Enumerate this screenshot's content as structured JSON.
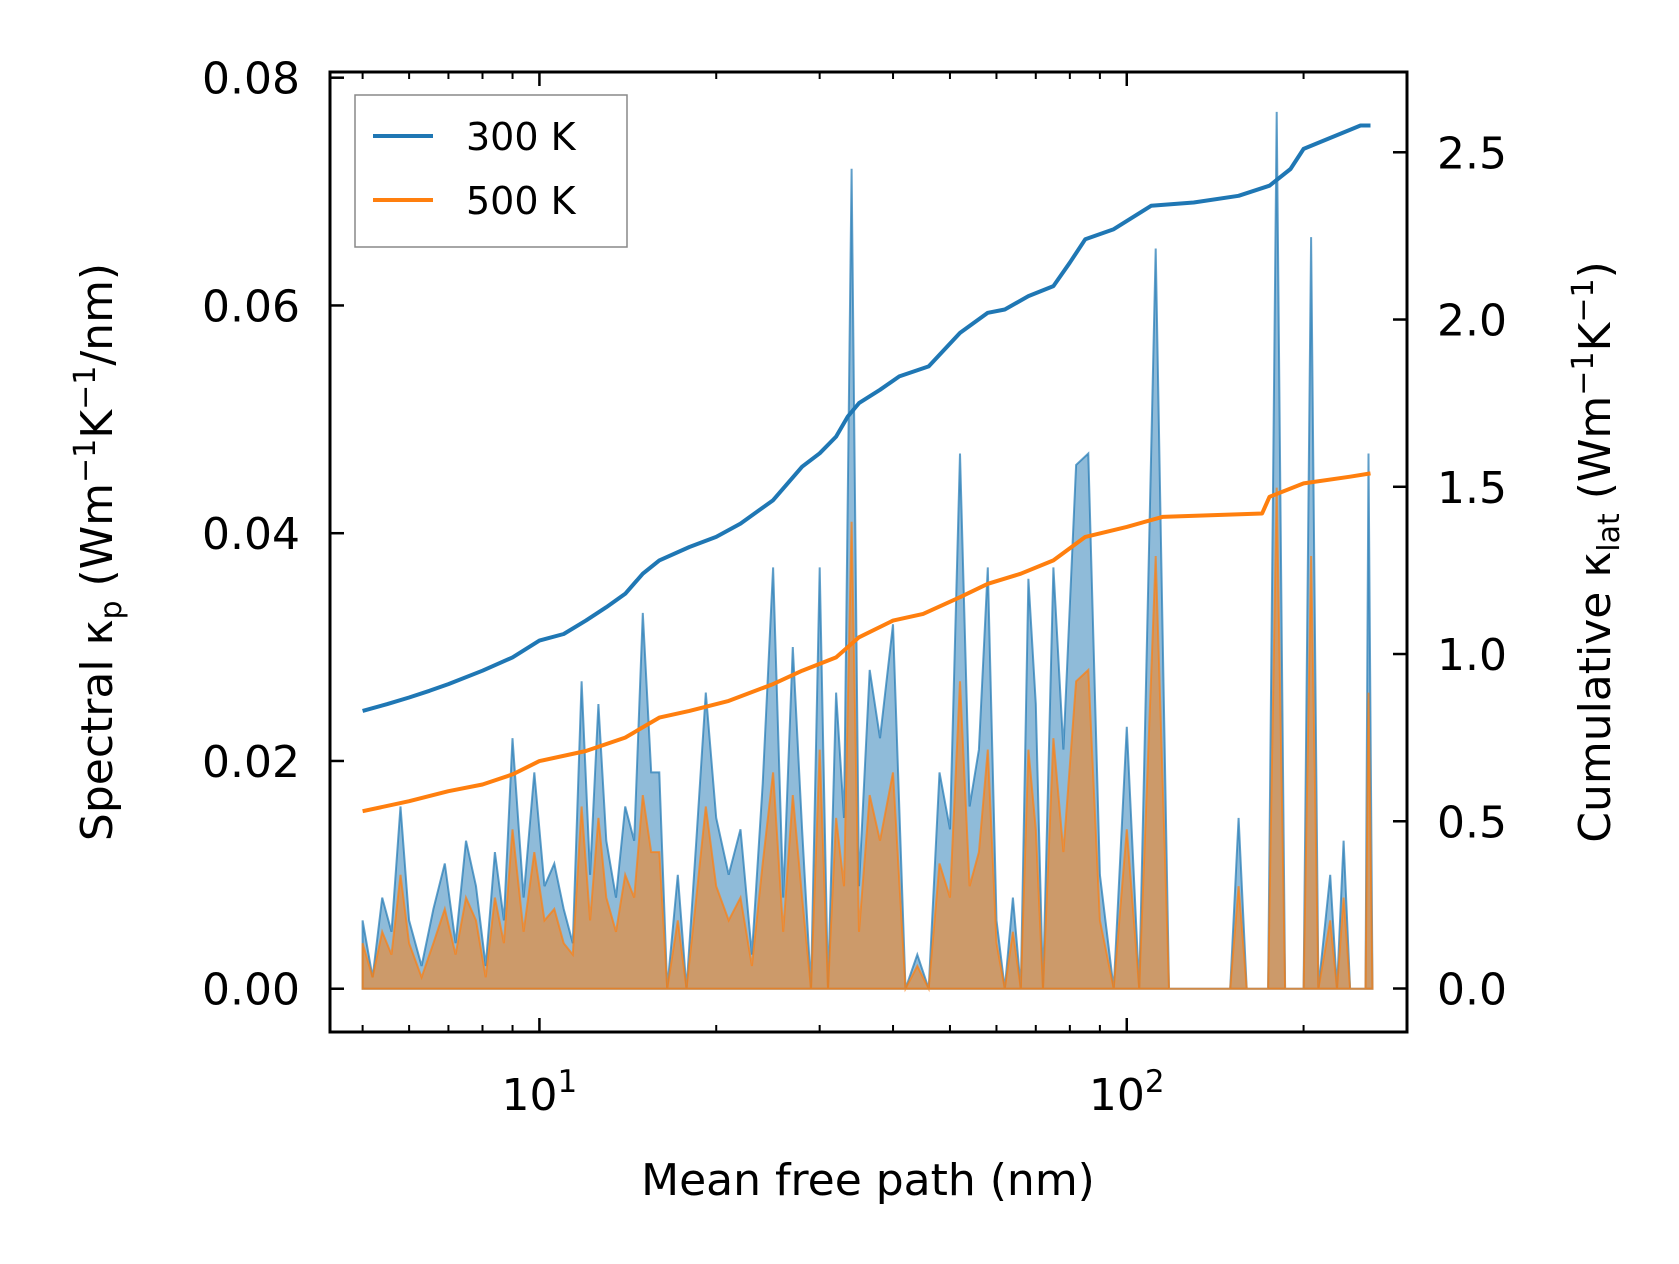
{
  "chart_data": {
    "type": "line",
    "title": "",
    "xlabel": "Mean free path (nm)",
    "x_scale": "log",
    "xlim": [
      4.4,
      300
    ],
    "xticks": [
      {
        "value": 10,
        "label": "10",
        "exp": "1"
      },
      {
        "value": 100,
        "label": "10",
        "exp": "2"
      }
    ],
    "ylabel_left": {
      "prefix": "Spectral κ",
      "sub": "p",
      "unit_open": " (Wm",
      "sup1": "−1",
      "unit_mid": "K",
      "sup2": "−1",
      "unit_close": "/nm)"
    },
    "ylim_left": [
      -0.0038,
      0.0805
    ],
    "yticks_left": [
      "0.00",
      "0.02",
      "0.04",
      "0.06",
      "0.08"
    ],
    "ylabel_right": {
      "prefix": "Cumulative κ",
      "sub": "lat",
      "unit_open": " (Wm",
      "sup1": "−1",
      "unit_mid": "K",
      "sup2": "−1",
      "unit_close": ")"
    },
    "ylim_right": [
      -0.13,
      2.74
    ],
    "yticks_right": [
      "0.0",
      "0.5",
      "1.0",
      "1.5",
      "2.0",
      "2.5"
    ],
    "legend": {
      "position": "top-left",
      "entries": [
        {
          "label": "300 K",
          "color": "#1f77b4"
        },
        {
          "label": "500 K",
          "color": "#ff7f0e"
        }
      ]
    },
    "cumulative_series": [
      {
        "name": "300 K",
        "color": "#1f77b4",
        "axis": "right",
        "points": [
          [
            5.0,
            0.83
          ],
          [
            5.5,
            0.85
          ],
          [
            6.0,
            0.87
          ],
          [
            6.5,
            0.89
          ],
          [
            7.0,
            0.91
          ],
          [
            8.0,
            0.95
          ],
          [
            9.0,
            0.99
          ],
          [
            10.0,
            1.04
          ],
          [
            11.0,
            1.06
          ],
          [
            12.0,
            1.1
          ],
          [
            13.0,
            1.14
          ],
          [
            14.0,
            1.18
          ],
          [
            15.0,
            1.24
          ],
          [
            16.0,
            1.28
          ],
          [
            18.0,
            1.32
          ],
          [
            20.0,
            1.35
          ],
          [
            22.0,
            1.39
          ],
          [
            25.0,
            1.46
          ],
          [
            28.0,
            1.56
          ],
          [
            30.0,
            1.6
          ],
          [
            32.0,
            1.65
          ],
          [
            33.5,
            1.71
          ],
          [
            35.0,
            1.75
          ],
          [
            38.0,
            1.79
          ],
          [
            41.0,
            1.83
          ],
          [
            46.0,
            1.86
          ],
          [
            52.0,
            1.96
          ],
          [
            58.0,
            2.02
          ],
          [
            62.0,
            2.03
          ],
          [
            68.0,
            2.07
          ],
          [
            75.0,
            2.1
          ],
          [
            80.0,
            2.17
          ],
          [
            85.0,
            2.24
          ],
          [
            95.0,
            2.27
          ],
          [
            110.0,
            2.34
          ],
          [
            130.0,
            2.35
          ],
          [
            155.0,
            2.37
          ],
          [
            175.0,
            2.4
          ],
          [
            190.0,
            2.45
          ],
          [
            200.0,
            2.51
          ],
          [
            220.0,
            2.54
          ],
          [
            250.0,
            2.58
          ],
          [
            260.0,
            2.58
          ]
        ]
      },
      {
        "name": "500 K",
        "color": "#ff7f0e",
        "axis": "right",
        "points": [
          [
            5.0,
            0.53
          ],
          [
            6.0,
            0.56
          ],
          [
            7.0,
            0.59
          ],
          [
            8.0,
            0.61
          ],
          [
            9.0,
            0.64
          ],
          [
            10.0,
            0.68
          ],
          [
            12.0,
            0.71
          ],
          [
            14.0,
            0.75
          ],
          [
            16.0,
            0.81
          ],
          [
            18.0,
            0.83
          ],
          [
            21.0,
            0.86
          ],
          [
            25.0,
            0.91
          ],
          [
            28.0,
            0.95
          ],
          [
            32.0,
            0.99
          ],
          [
            35.0,
            1.05
          ],
          [
            40.0,
            1.1
          ],
          [
            45.0,
            1.12
          ],
          [
            52.0,
            1.17
          ],
          [
            58.0,
            1.21
          ],
          [
            66.0,
            1.24
          ],
          [
            75.0,
            1.28
          ],
          [
            85.0,
            1.35
          ],
          [
            100.0,
            1.38
          ],
          [
            115.0,
            1.41
          ],
          [
            170.0,
            1.42
          ],
          [
            175.0,
            1.47
          ],
          [
            200.0,
            1.51
          ],
          [
            240.0,
            1.53
          ],
          [
            260.0,
            1.54
          ]
        ]
      }
    ],
    "spectral_series": [
      {
        "name": "300 K",
        "color": "#1f77b4",
        "axis": "left",
        "points": [
          [
            5.0,
            0.006
          ],
          [
            5.2,
            0.001
          ],
          [
            5.4,
            0.008
          ],
          [
            5.6,
            0.005
          ],
          [
            5.8,
            0.016
          ],
          [
            6.0,
            0.006
          ],
          [
            6.3,
            0.002
          ],
          [
            6.6,
            0.007
          ],
          [
            6.9,
            0.011
          ],
          [
            7.2,
            0.004
          ],
          [
            7.5,
            0.013
          ],
          [
            7.8,
            0.009
          ],
          [
            8.1,
            0.002
          ],
          [
            8.4,
            0.012
          ],
          [
            8.7,
            0.006
          ],
          [
            9.0,
            0.022
          ],
          [
            9.4,
            0.008
          ],
          [
            9.8,
            0.019
          ],
          [
            10.2,
            0.009
          ],
          [
            10.6,
            0.011
          ],
          [
            11.0,
            0.007
          ],
          [
            11.4,
            0.004
          ],
          [
            11.8,
            0.027
          ],
          [
            12.2,
            0.01
          ],
          [
            12.6,
            0.025
          ],
          [
            13.0,
            0.013
          ],
          [
            13.5,
            0.008
          ],
          [
            14.0,
            0.016
          ],
          [
            14.5,
            0.013
          ],
          [
            15.0,
            0.033
          ],
          [
            15.5,
            0.019
          ],
          [
            16.0,
            0.019
          ],
          [
            16.5,
            0.0
          ],
          [
            17.2,
            0.01
          ],
          [
            17.8,
            0.0
          ],
          [
            18.5,
            0.013
          ],
          [
            19.2,
            0.026
          ],
          [
            20.0,
            0.015
          ],
          [
            21.0,
            0.01
          ],
          [
            22.0,
            0.014
          ],
          [
            23.0,
            0.003
          ],
          [
            24.0,
            0.018
          ],
          [
            25.0,
            0.037
          ],
          [
            26.0,
            0.008
          ],
          [
            27.0,
            0.03
          ],
          [
            28.0,
            0.014
          ],
          [
            29.0,
            0.0
          ],
          [
            30.0,
            0.037
          ],
          [
            31.0,
            0.0
          ],
          [
            32.0,
            0.026
          ],
          [
            33.0,
            0.015
          ],
          [
            34.0,
            0.072
          ],
          [
            35.0,
            0.009
          ],
          [
            36.5,
            0.028
          ],
          [
            38.0,
            0.022
          ],
          [
            40.0,
            0.032
          ],
          [
            42.0,
            0.0
          ],
          [
            44.0,
            0.003
          ],
          [
            46.0,
            0.0
          ],
          [
            48.0,
            0.019
          ],
          [
            50.0,
            0.014
          ],
          [
            52.0,
            0.047
          ],
          [
            54.0,
            0.016
          ],
          [
            56.0,
            0.021
          ],
          [
            58.0,
            0.037
          ],
          [
            60.0,
            0.006
          ],
          [
            62.0,
            0.0
          ],
          [
            64.0,
            0.008
          ],
          [
            66.0,
            0.0
          ],
          [
            68.0,
            0.036
          ],
          [
            70.0,
            0.025
          ],
          [
            72.0,
            0.0
          ],
          [
            75.0,
            0.037
          ],
          [
            78.0,
            0.021
          ],
          [
            82.0,
            0.046
          ],
          [
            86.0,
            0.047
          ],
          [
            90.0,
            0.01
          ],
          [
            95.0,
            0.0
          ],
          [
            100.0,
            0.023
          ],
          [
            105.0,
            0.0
          ],
          [
            112.0,
            0.065
          ],
          [
            118.0,
            0.0
          ],
          [
            150.0,
            0.0
          ],
          [
            155.0,
            0.015
          ],
          [
            160.0,
            0.0
          ],
          [
            174.0,
            0.0
          ],
          [
            180.0,
            0.077
          ],
          [
            186.0,
            0.0
          ],
          [
            200.0,
            0.0
          ],
          [
            206.0,
            0.066
          ],
          [
            212.0,
            0.0
          ],
          [
            222.0,
            0.01
          ],
          [
            228.0,
            0.0
          ],
          [
            234.0,
            0.013
          ],
          [
            240.0,
            0.0
          ],
          [
            255.0,
            0.0
          ],
          [
            258.0,
            0.047
          ],
          [
            262.0,
            0.0
          ]
        ]
      },
      {
        "name": "500 K",
        "color": "#ff7f0e",
        "axis": "left",
        "points": [
          [
            5.0,
            0.004
          ],
          [
            5.2,
            0.001
          ],
          [
            5.4,
            0.005
          ],
          [
            5.6,
            0.003
          ],
          [
            5.8,
            0.01
          ],
          [
            6.0,
            0.004
          ],
          [
            6.3,
            0.001
          ],
          [
            6.6,
            0.004
          ],
          [
            6.9,
            0.007
          ],
          [
            7.2,
            0.003
          ],
          [
            7.5,
            0.008
          ],
          [
            7.8,
            0.006
          ],
          [
            8.1,
            0.001
          ],
          [
            8.4,
            0.008
          ],
          [
            8.7,
            0.004
          ],
          [
            9.0,
            0.014
          ],
          [
            9.4,
            0.005
          ],
          [
            9.8,
            0.012
          ],
          [
            10.2,
            0.006
          ],
          [
            10.6,
            0.007
          ],
          [
            11.0,
            0.004
          ],
          [
            11.4,
            0.003
          ],
          [
            11.8,
            0.016
          ],
          [
            12.2,
            0.006
          ],
          [
            12.6,
            0.015
          ],
          [
            13.0,
            0.008
          ],
          [
            13.5,
            0.005
          ],
          [
            14.0,
            0.01
          ],
          [
            14.5,
            0.008
          ],
          [
            15.0,
            0.017
          ],
          [
            15.5,
            0.012
          ],
          [
            16.0,
            0.012
          ],
          [
            16.5,
            0.0
          ],
          [
            17.2,
            0.006
          ],
          [
            17.8,
            0.0
          ],
          [
            18.5,
            0.008
          ],
          [
            19.2,
            0.016
          ],
          [
            20.0,
            0.009
          ],
          [
            21.0,
            0.006
          ],
          [
            22.0,
            0.008
          ],
          [
            23.0,
            0.002
          ],
          [
            24.0,
            0.011
          ],
          [
            25.0,
            0.019
          ],
          [
            26.0,
            0.005
          ],
          [
            27.0,
            0.017
          ],
          [
            28.0,
            0.008
          ],
          [
            29.0,
            0.0
          ],
          [
            30.0,
            0.021
          ],
          [
            31.0,
            0.0
          ],
          [
            32.0,
            0.015
          ],
          [
            33.0,
            0.009
          ],
          [
            34.0,
            0.041
          ],
          [
            35.0,
            0.005
          ],
          [
            36.5,
            0.017
          ],
          [
            38.0,
            0.013
          ],
          [
            40.0,
            0.019
          ],
          [
            42.0,
            0.0
          ],
          [
            44.0,
            0.002
          ],
          [
            46.0,
            0.0
          ],
          [
            48.0,
            0.011
          ],
          [
            50.0,
            0.008
          ],
          [
            52.0,
            0.027
          ],
          [
            54.0,
            0.009
          ],
          [
            56.0,
            0.012
          ],
          [
            58.0,
            0.021
          ],
          [
            60.0,
            0.004
          ],
          [
            62.0,
            0.0
          ],
          [
            64.0,
            0.005
          ],
          [
            66.0,
            0.0
          ],
          [
            68.0,
            0.021
          ],
          [
            70.0,
            0.014
          ],
          [
            72.0,
            0.0
          ],
          [
            75.0,
            0.022
          ],
          [
            78.0,
            0.012
          ],
          [
            82.0,
            0.027
          ],
          [
            86.0,
            0.028
          ],
          [
            90.0,
            0.006
          ],
          [
            95.0,
            0.0
          ],
          [
            100.0,
            0.014
          ],
          [
            105.0,
            0.0
          ],
          [
            112.0,
            0.038
          ],
          [
            118.0,
            0.0
          ],
          [
            150.0,
            0.0
          ],
          [
            155.0,
            0.009
          ],
          [
            160.0,
            0.0
          ],
          [
            174.0,
            0.0
          ],
          [
            180.0,
            0.044
          ],
          [
            186.0,
            0.0
          ],
          [
            200.0,
            0.0
          ],
          [
            206.0,
            0.038
          ],
          [
            212.0,
            0.0
          ],
          [
            222.0,
            0.006
          ],
          [
            228.0,
            0.0
          ],
          [
            234.0,
            0.008
          ],
          [
            240.0,
            0.0
          ],
          [
            255.0,
            0.0
          ],
          [
            258.0,
            0.026
          ],
          [
            262.0,
            0.0
          ]
        ]
      }
    ]
  }
}
